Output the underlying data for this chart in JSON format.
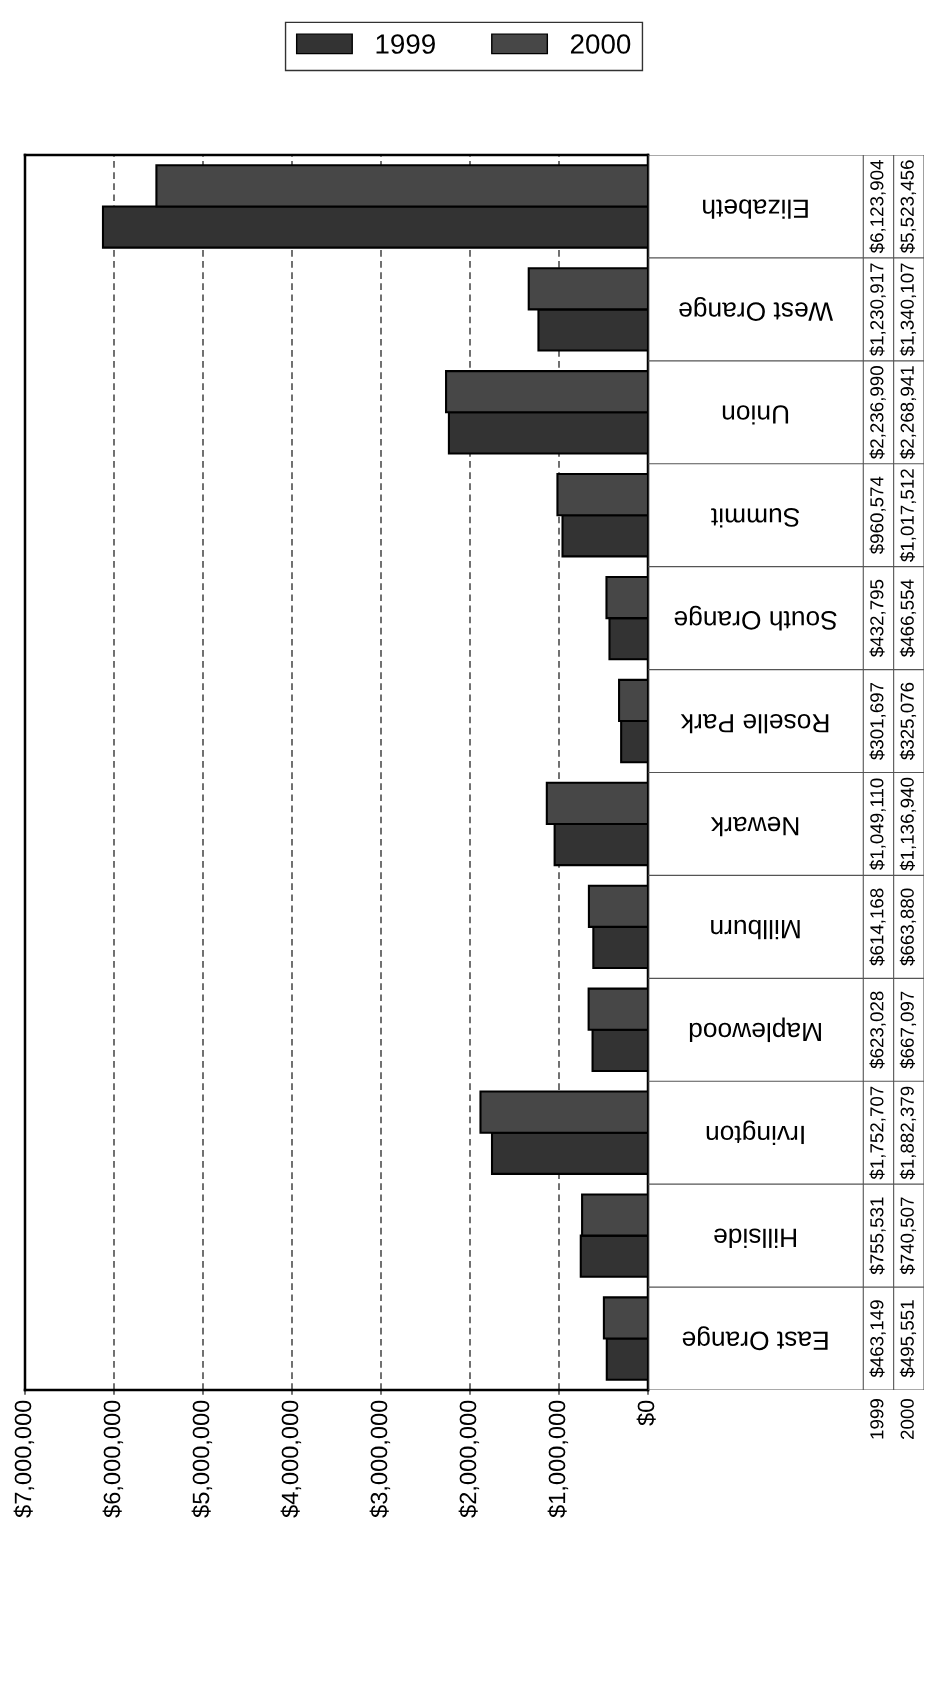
{
  "chart_data": {
    "type": "bar",
    "orientation": "horizontal",
    "categories": [
      "Elizabeth",
      "West Orange",
      "Union",
      "Summit",
      "South Orange",
      "Roselle Park",
      "Newark",
      "Millburn",
      "Maplewood",
      "Irvington",
      "Hillside",
      "East Orange"
    ],
    "series": [
      {
        "name": "1999",
        "color": "#333333",
        "values": [
          6123904,
          1230917,
          2236990,
          960574,
          432795,
          301697,
          1049110,
          614168,
          623028,
          1752707,
          755531,
          463149
        ],
        "value_labels": [
          "$6,123,904",
          "$1,230,917",
          "$2,236,990",
          "$960,574",
          "$432,795",
          "$301,697",
          "$1,049,110",
          "$614,168",
          "$623,028",
          "$1,752,707",
          "$755,531",
          "$463,149"
        ]
      },
      {
        "name": "2000",
        "color": "#474747",
        "values": [
          5523456,
          1340107,
          2268941,
          1017512,
          466554,
          325076,
          1136940,
          663880,
          667097,
          1882379,
          740507,
          495551
        ],
        "value_labels": [
          "$5,523,456",
          "$1,340,107",
          "$2,268,941",
          "$1,017,512",
          "$466,554",
          "$325,076",
          "$1,136,940",
          "$663,880",
          "$667,097",
          "$1,882,379",
          "$740,507",
          "$495,551"
        ]
      }
    ],
    "xlim": [
      7000000,
      0
    ],
    "xticks": [
      {
        "value": 7000000,
        "label": "$7,000,000"
      },
      {
        "value": 6000000,
        "label": "$6,000,000"
      },
      {
        "value": 5000000,
        "label": "$5,000,000"
      },
      {
        "value": 4000000,
        "label": "$4,000,000"
      },
      {
        "value": 3000000,
        "label": "$3,000,000"
      },
      {
        "value": 2000000,
        "label": "$2,000,000"
      },
      {
        "value": 1000000,
        "label": "$1,000,000"
      },
      {
        "value": 0,
        "label": "$0"
      }
    ],
    "grid": "x",
    "legend": "top"
  }
}
